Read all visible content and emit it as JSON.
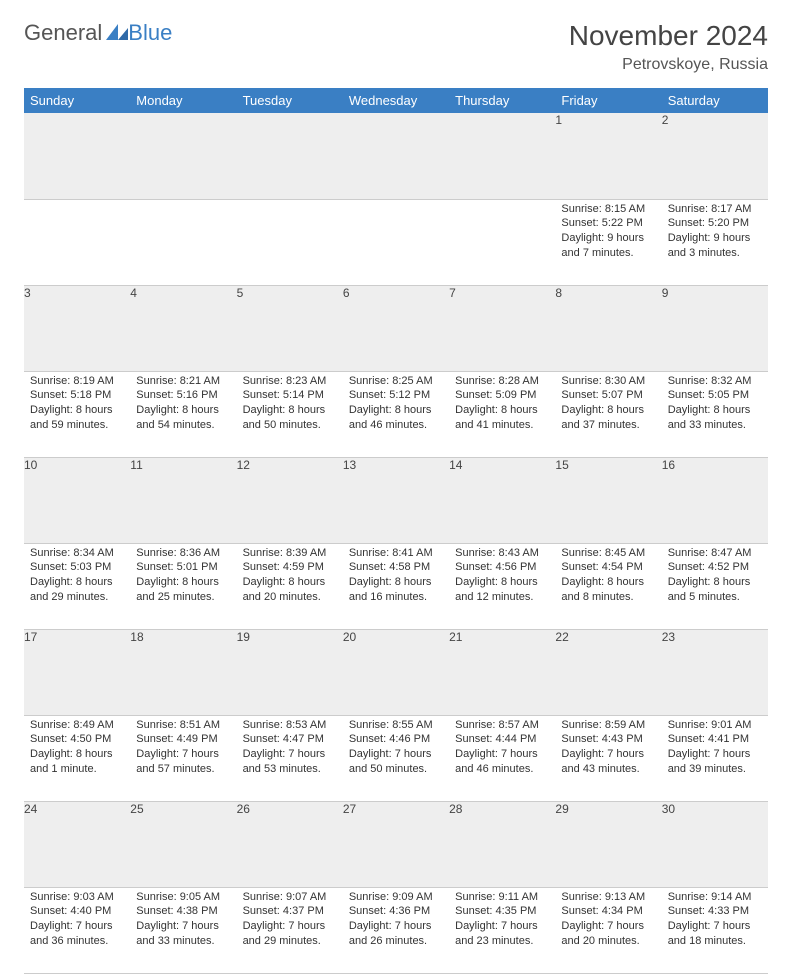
{
  "brand": {
    "general": "General",
    "blue": "Blue"
  },
  "title": "November 2024",
  "location": "Petrovskoye, Russia",
  "colors": {
    "header_bg": "#3a7fc4",
    "header_fg": "#ffffff",
    "daynum_bg": "#eeeeee",
    "border": "#cccccc",
    "text": "#333333"
  },
  "typography": {
    "title_fontsize": 28,
    "location_fontsize": 16,
    "weekday_fontsize": 13,
    "daynum_fontsize": 12,
    "cell_fontsize": 11
  },
  "weekdays": [
    "Sunday",
    "Monday",
    "Tuesday",
    "Wednesday",
    "Thursday",
    "Friday",
    "Saturday"
  ],
  "weeks": [
    [
      null,
      null,
      null,
      null,
      null,
      {
        "n": "1",
        "sunrise": "8:15 AM",
        "sunset": "5:22 PM",
        "daylight": "9 hours and 7 minutes."
      },
      {
        "n": "2",
        "sunrise": "8:17 AM",
        "sunset": "5:20 PM",
        "daylight": "9 hours and 3 minutes."
      }
    ],
    [
      {
        "n": "3",
        "sunrise": "8:19 AM",
        "sunset": "5:18 PM",
        "daylight": "8 hours and 59 minutes."
      },
      {
        "n": "4",
        "sunrise": "8:21 AM",
        "sunset": "5:16 PM",
        "daylight": "8 hours and 54 minutes."
      },
      {
        "n": "5",
        "sunrise": "8:23 AM",
        "sunset": "5:14 PM",
        "daylight": "8 hours and 50 minutes."
      },
      {
        "n": "6",
        "sunrise": "8:25 AM",
        "sunset": "5:12 PM",
        "daylight": "8 hours and 46 minutes."
      },
      {
        "n": "7",
        "sunrise": "8:28 AM",
        "sunset": "5:09 PM",
        "daylight": "8 hours and 41 minutes."
      },
      {
        "n": "8",
        "sunrise": "8:30 AM",
        "sunset": "5:07 PM",
        "daylight": "8 hours and 37 minutes."
      },
      {
        "n": "9",
        "sunrise": "8:32 AM",
        "sunset": "5:05 PM",
        "daylight": "8 hours and 33 minutes."
      }
    ],
    [
      {
        "n": "10",
        "sunrise": "8:34 AM",
        "sunset": "5:03 PM",
        "daylight": "8 hours and 29 minutes."
      },
      {
        "n": "11",
        "sunrise": "8:36 AM",
        "sunset": "5:01 PM",
        "daylight": "8 hours and 25 minutes."
      },
      {
        "n": "12",
        "sunrise": "8:39 AM",
        "sunset": "4:59 PM",
        "daylight": "8 hours and 20 minutes."
      },
      {
        "n": "13",
        "sunrise": "8:41 AM",
        "sunset": "4:58 PM",
        "daylight": "8 hours and 16 minutes."
      },
      {
        "n": "14",
        "sunrise": "8:43 AM",
        "sunset": "4:56 PM",
        "daylight": "8 hours and 12 minutes."
      },
      {
        "n": "15",
        "sunrise": "8:45 AM",
        "sunset": "4:54 PM",
        "daylight": "8 hours and 8 minutes."
      },
      {
        "n": "16",
        "sunrise": "8:47 AM",
        "sunset": "4:52 PM",
        "daylight": "8 hours and 5 minutes."
      }
    ],
    [
      {
        "n": "17",
        "sunrise": "8:49 AM",
        "sunset": "4:50 PM",
        "daylight": "8 hours and 1 minute."
      },
      {
        "n": "18",
        "sunrise": "8:51 AM",
        "sunset": "4:49 PM",
        "daylight": "7 hours and 57 minutes."
      },
      {
        "n": "19",
        "sunrise": "8:53 AM",
        "sunset": "4:47 PM",
        "daylight": "7 hours and 53 minutes."
      },
      {
        "n": "20",
        "sunrise": "8:55 AM",
        "sunset": "4:46 PM",
        "daylight": "7 hours and 50 minutes."
      },
      {
        "n": "21",
        "sunrise": "8:57 AM",
        "sunset": "4:44 PM",
        "daylight": "7 hours and 46 minutes."
      },
      {
        "n": "22",
        "sunrise": "8:59 AM",
        "sunset": "4:43 PM",
        "daylight": "7 hours and 43 minutes."
      },
      {
        "n": "23",
        "sunrise": "9:01 AM",
        "sunset": "4:41 PM",
        "daylight": "7 hours and 39 minutes."
      }
    ],
    [
      {
        "n": "24",
        "sunrise": "9:03 AM",
        "sunset": "4:40 PM",
        "daylight": "7 hours and 36 minutes."
      },
      {
        "n": "25",
        "sunrise": "9:05 AM",
        "sunset": "4:38 PM",
        "daylight": "7 hours and 33 minutes."
      },
      {
        "n": "26",
        "sunrise": "9:07 AM",
        "sunset": "4:37 PM",
        "daylight": "7 hours and 29 minutes."
      },
      {
        "n": "27",
        "sunrise": "9:09 AM",
        "sunset": "4:36 PM",
        "daylight": "7 hours and 26 minutes."
      },
      {
        "n": "28",
        "sunrise": "9:11 AM",
        "sunset": "4:35 PM",
        "daylight": "7 hours and 23 minutes."
      },
      {
        "n": "29",
        "sunrise": "9:13 AM",
        "sunset": "4:34 PM",
        "daylight": "7 hours and 20 minutes."
      },
      {
        "n": "30",
        "sunrise": "9:14 AM",
        "sunset": "4:33 PM",
        "daylight": "7 hours and 18 minutes."
      }
    ]
  ],
  "labels": {
    "sunrise": "Sunrise:",
    "sunset": "Sunset:",
    "daylight": "Daylight:"
  }
}
